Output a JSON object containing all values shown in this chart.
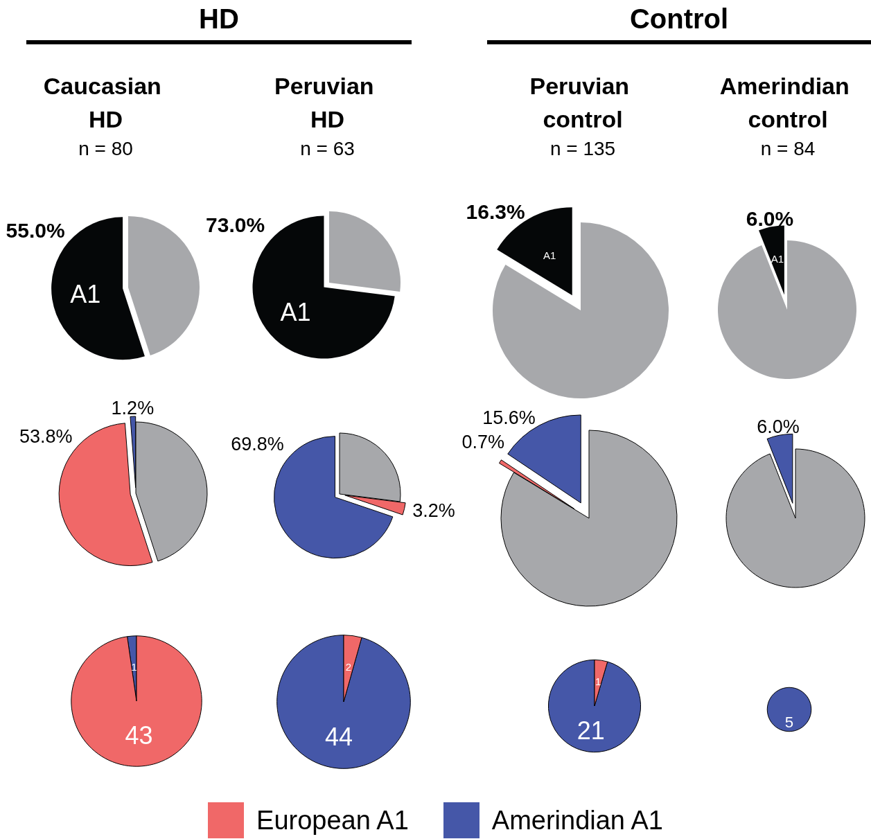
{
  "chart_data": [
    {
      "type": "pie",
      "title": "Caucasian HD",
      "subtitle": "n = 80",
      "annotations": [
        "HD"
      ],
      "categories": [
        "A1",
        null
      ],
      "values": [
        55.0,
        45.0
      ],
      "colors": [
        "#050708",
        "#a7a8ab"
      ],
      "value_labels": [
        "55.0%",
        null
      ]
    },
    {
      "type": "pie",
      "title": "Peruvian HD",
      "subtitle": "n = 63",
      "categories": [
        "A1",
        null
      ],
      "values": [
        73.0,
        27.0
      ],
      "colors": [
        "#050708",
        "#a7a8ab"
      ],
      "value_labels": [
        "73.0%",
        null
      ]
    },
    {
      "type": "pie",
      "title": "Peruvian control",
      "subtitle": "n = 135",
      "annotations": [
        "Control"
      ],
      "categories": [
        "A1",
        null
      ],
      "values": [
        16.3,
        83.7
      ],
      "colors": [
        "#050708",
        "#a7a8ab"
      ],
      "value_labels": [
        "16.3%",
        null
      ]
    },
    {
      "type": "pie",
      "title": "Amerindian control",
      "subtitle": "n = 84",
      "categories": [
        "A1",
        null
      ],
      "values": [
        6.0,
        94.0
      ],
      "colors": [
        "#050708",
        "#a7a8ab"
      ],
      "value_labels": [
        "6.0%",
        null
      ]
    },
    {
      "type": "pie",
      "legend": "bottom",
      "categories": [
        "Amerindian A1",
        "European A1",
        null
      ],
      "values": [
        1.2,
        53.8,
        45.0
      ],
      "colors": [
        "#4557a8",
        "#f06868",
        "#a7a8ab"
      ],
      "value_labels": [
        "1.2%",
        "53.8%",
        null
      ]
    },
    {
      "type": "pie",
      "categories": [
        null,
        null,
        null
      ],
      "values": [
        69.8,
        3.2,
        27.0
      ],
      "colors": [
        "#4557a8",
        "#f06868",
        "#a7a8ab"
      ],
      "value_labels": [
        "69.8%",
        "3.2%",
        null
      ]
    },
    {
      "type": "pie",
      "categories": [
        null,
        null,
        null
      ],
      "values": [
        15.6,
        0.7,
        83.7
      ],
      "colors": [
        "#4557a8",
        "#f06868",
        "#a7a8ab"
      ],
      "value_labels": [
        "15.6%",
        "0.7%",
        null
      ]
    },
    {
      "type": "pie",
      "categories": [
        null,
        null
      ],
      "values": [
        6.0,
        94.0
      ],
      "colors": [
        "#4557a8",
        "#a7a8ab"
      ],
      "value_labels": [
        "6.0%",
        null
      ]
    },
    {
      "type": "pie",
      "data_labels": true,
      "categories": [
        null,
        null
      ],
      "values": [
        1,
        43
      ],
      "colors": [
        "#4557a8",
        "#f06868"
      ]
    },
    {
      "type": "pie",
      "data_labels": true,
      "categories": [
        null,
        null
      ],
      "values": [
        44,
        2
      ],
      "colors": [
        "#4557a8",
        "#f06868"
      ]
    },
    {
      "type": "pie",
      "data_labels": true,
      "categories": [
        null,
        null
      ],
      "values": [
        21,
        1
      ],
      "colors": [
        "#4557a8",
        "#f06868"
      ]
    },
    {
      "type": "pie",
      "data_labels": true,
      "categories": [
        null
      ],
      "values": [
        5
      ],
      "colors": [
        "#4557a8"
      ]
    }
  ]
}
